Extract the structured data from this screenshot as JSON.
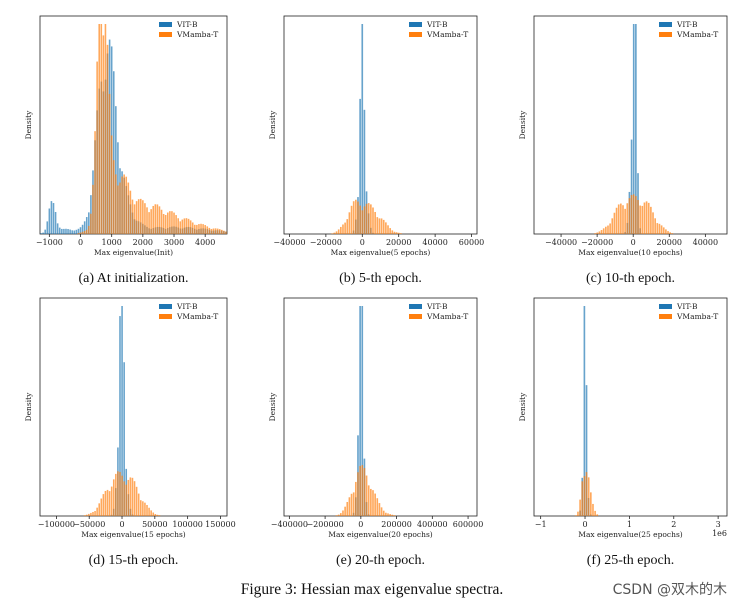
{
  "figure_caption": "Figure 3: Hessian max eigenvalue spectra.",
  "watermark": "CSDN @双木的木",
  "colors": {
    "vit": "#1f77b4",
    "vmamba": "#ff7f0e"
  },
  "chart_data": [
    {
      "type": "histogram",
      "caption": "(a) At initialization.",
      "xlabel": "Max eigenvalue(Init)",
      "ylabel": "Density",
      "xlim": [
        -1300,
        4700
      ],
      "ticks": [
        -1000,
        0,
        1000,
        2000,
        3000,
        4000
      ],
      "tick_labels": [
        "−1000",
        "0",
        "1000",
        "2000",
        "3000",
        "4000"
      ],
      "offset_label": "",
      "series_names": [
        "VIT-B",
        "VMamba-T"
      ],
      "legend": "top-right",
      "series": [
        {
          "name": "VIT-B",
          "peaks": [
            {
              "center": 820,
              "width": 260,
              "height": 0.62
            },
            {
              "center": 1050,
              "width": 420,
              "height": 0.22
            },
            {
              "center": -900,
              "width": 100,
              "height": 0.12
            },
            {
              "center": -500,
              "width": 400,
              "height": 0.02
            },
            {
              "center": 3000,
              "width": 1200,
              "height": 0.03
            }
          ]
        },
        {
          "name": "VMamba-T",
          "peaks": [
            {
              "center": 700,
              "width": 140,
              "height": 1.0
            },
            {
              "center": 1100,
              "width": 380,
              "height": 0.22
            },
            {
              "center": 2000,
              "width": 700,
              "height": 0.1
            },
            {
              "center": 3200,
              "width": 900,
              "height": 0.05
            }
          ]
        }
      ]
    },
    {
      "type": "histogram",
      "caption": "(b) 5-th epoch.",
      "xlabel": "Max eigenvalue(5 epochs)",
      "ylabel": "Density",
      "xlim": [
        -43000,
        63000
      ],
      "ticks": [
        -40000,
        -20000,
        0,
        20000,
        40000,
        60000
      ],
      "tick_labels": [
        "−40000",
        "−20000",
        "0",
        "20000",
        "40000",
        "60000"
      ],
      "offset_label": "",
      "series_names": [
        "VIT-B",
        "VMamba-T"
      ],
      "legend": "top-right",
      "series": [
        {
          "name": "VIT-B",
          "peaks": [
            {
              "center": 0,
              "width": 500,
              "height": 1.0
            },
            {
              "center": 200,
              "width": 1800,
              "height": 0.3
            }
          ]
        },
        {
          "name": "VMamba-T",
          "peaks": [
            {
              "center": -4000,
              "width": 4500,
              "height": 0.1
            },
            {
              "center": 5000,
              "width": 6000,
              "height": 0.1
            }
          ]
        }
      ]
    },
    {
      "type": "histogram",
      "caption": "(c) 10-th epoch.",
      "xlabel": "Max eigenvalue(10 epochs)",
      "ylabel": "Density",
      "xlim": [
        -55000,
        52000
      ],
      "ticks": [
        -40000,
        -20000,
        0,
        20000,
        40000
      ],
      "tick_labels": [
        "−40000",
        "−20000",
        "0",
        "20000",
        "40000"
      ],
      "offset_label": "",
      "series_names": [
        "VIT-B",
        "VMamba-T"
      ],
      "legend": "top-right",
      "series": [
        {
          "name": "VIT-B",
          "peaks": [
            {
              "center": 1000,
              "width": 600,
              "height": 1.0
            },
            {
              "center": 0,
              "width": 1500,
              "height": 0.35
            }
          ]
        },
        {
          "name": "VMamba-T",
          "peaks": [
            {
              "center": -5000,
              "width": 6000,
              "height": 0.12
            },
            {
              "center": 6000,
              "width": 6000,
              "height": 0.12
            }
          ]
        }
      ]
    },
    {
      "type": "histogram",
      "caption": "(d) 15-th epoch.",
      "xlabel": "Max eigenvalue(15 epochs)",
      "ylabel": "Density",
      "xlim": [
        -125000,
        160000
      ],
      "ticks": [
        -100000,
        -50000,
        0,
        50000,
        100000,
        150000
      ],
      "tick_labels": [
        "−100000",
        "−50000",
        "0",
        "50000",
        "100000",
        "150000"
      ],
      "offset_label": "",
      "series_names": [
        "VIT-B",
        "VMamba-T"
      ],
      "legend": "top-right",
      "series": [
        {
          "name": "VIT-B",
          "peaks": [
            {
              "center": 0,
              "width": 1300,
              "height": 1.0
            },
            {
              "center": 0,
              "width": 5000,
              "height": 0.45
            }
          ]
        },
        {
          "name": "VMamba-T",
          "peaks": [
            {
              "center": -12000,
              "width": 16000,
              "height": 0.13
            },
            {
              "center": 14000,
              "width": 16000,
              "height": 0.12
            }
          ]
        }
      ]
    },
    {
      "type": "histogram",
      "caption": "(e) 20-th epoch.",
      "xlabel": "Max eigenvalue(20 epochs)",
      "ylabel": "Density",
      "xlim": [
        -430000,
        650000
      ],
      "ticks": [
        -400000,
        -200000,
        0,
        200000,
        400000,
        600000
      ],
      "tick_labels": [
        "−400000",
        "−200000",
        "0",
        "200000",
        "400000",
        "600000"
      ],
      "offset_label": "",
      "series_names": [
        "VIT-B",
        "VMamba-T"
      ],
      "legend": "top-right",
      "series": [
        {
          "name": "VIT-B",
          "peaks": [
            {
              "center": 0,
              "width": 5000,
              "height": 1.0
            },
            {
              "center": 0,
              "width": 14000,
              "height": 0.4
            }
          ]
        },
        {
          "name": "VMamba-T",
          "peaks": [
            {
              "center": 0,
              "width": 45000,
              "height": 0.13
            },
            {
              "center": 30000,
              "width": 60000,
              "height": 0.08
            }
          ]
        }
      ]
    },
    {
      "type": "histogram",
      "caption": "(f) 25-th epoch.",
      "xlabel": "Max eigenvalue(25 epochs)",
      "ylabel": "Density",
      "xlim": [
        -1150000,
        3200000
      ],
      "ticks": [
        -1000000,
        0,
        1000000,
        2000000,
        3000000
      ],
      "tick_labels": [
        "−1",
        "0",
        "1",
        "2",
        "3"
      ],
      "offset_label": "1e6",
      "series_names": [
        "VIT-B",
        "VMamba-T"
      ],
      "legend": "top-right",
      "series": [
        {
          "name": "VIT-B",
          "peaks": [
            {
              "center": 0,
              "width": 12000,
              "height": 1.0
            },
            {
              "center": 0,
              "width": 40000,
              "height": 0.3
            }
          ]
        },
        {
          "name": "VMamba-T",
          "peaks": [
            {
              "center": 0,
              "width": 60000,
              "height": 0.16
            },
            {
              "center": 60000,
              "width": 90000,
              "height": 0.08
            }
          ]
        }
      ]
    }
  ]
}
